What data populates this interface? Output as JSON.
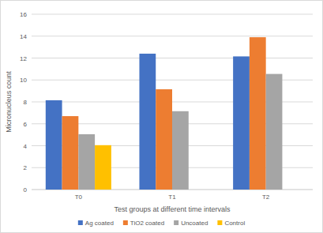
{
  "chart_data": {
    "type": "bar",
    "x_label": "Test groups at different time intervals",
    "y_label": "Micronucleus count",
    "categories": [
      "T0",
      "T1",
      "T2"
    ],
    "series": [
      {
        "name": "Ag coated",
        "color": "#4472c4",
        "values": [
          8.15,
          12.4,
          12.15
        ]
      },
      {
        "name": "TiO2 coated",
        "color": "#ed7d31",
        "values": [
          6.7,
          9.15,
          13.9
        ]
      },
      {
        "name": "Uncoated",
        "color": "#a5a5a5",
        "values": [
          5.05,
          7.15,
          10.55
        ]
      },
      {
        "name": "Control",
        "color": "#ffc000",
        "values": [
          4.05,
          null,
          null
        ]
      }
    ],
    "ylim": [
      0,
      16
    ],
    "yticks": [
      0,
      2,
      4,
      6,
      8,
      10,
      12,
      14,
      16
    ],
    "grid": true,
    "legend": "bottom"
  }
}
